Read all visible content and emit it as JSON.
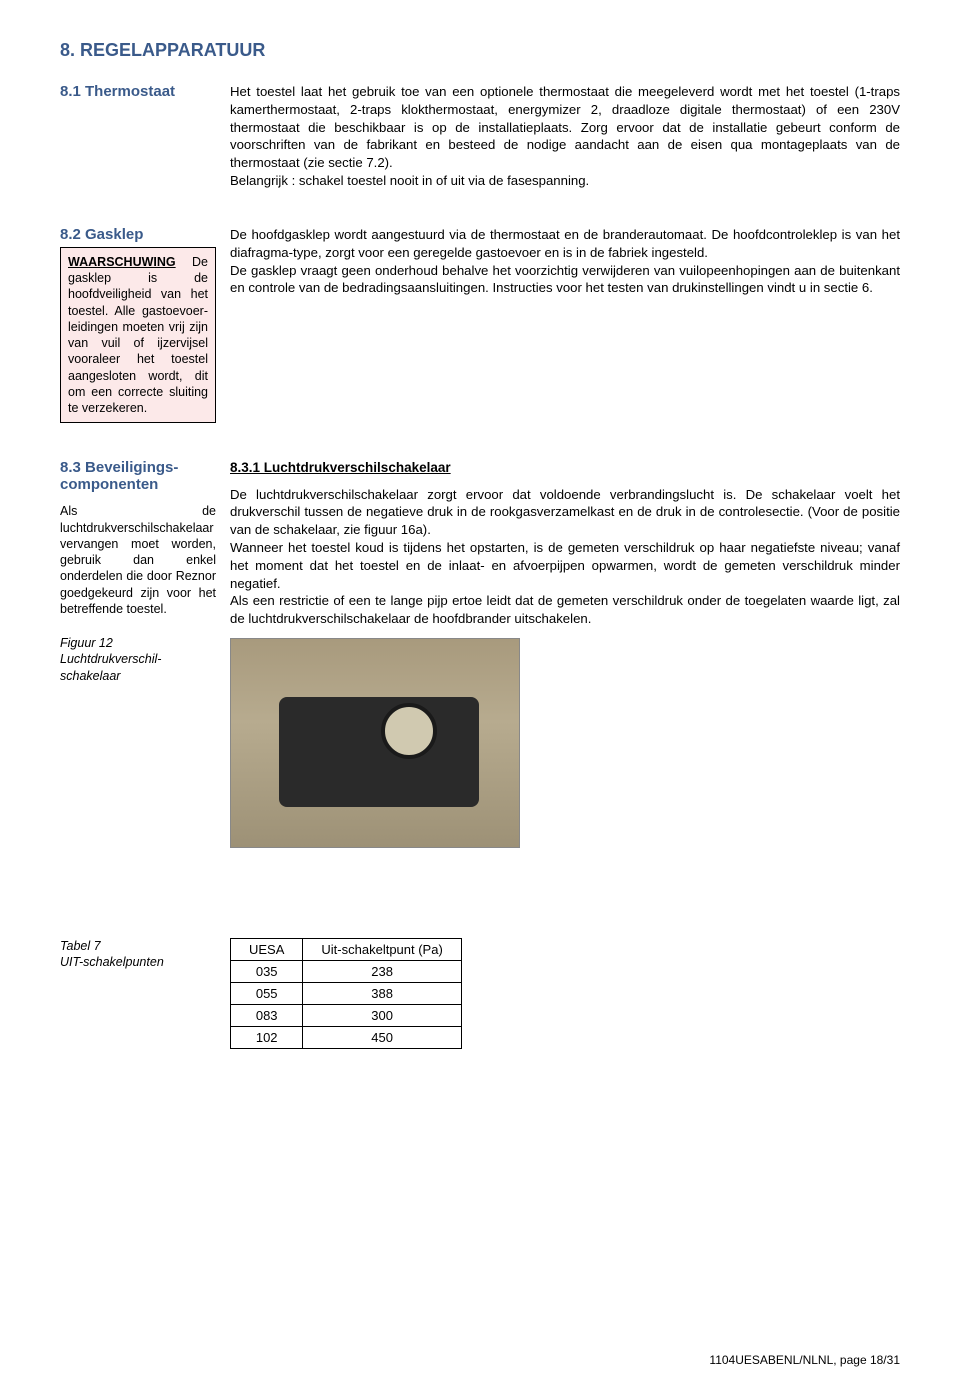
{
  "page_title": "8. REGELAPPARATUUR",
  "s1": {
    "heading": "8.1 Thermostaat",
    "body": "Het toestel laat het gebruik toe van een optionele thermostaat die meegeleverd wordt met het toestel (1-traps kamerthermostaat, 2-traps klokthermostaat, energymizer 2, draadloze digitale thermostaat) of een 230V thermostaat die beschikbaar is op de installatieplaats. Zorg ervoor dat de installatie gebeurt conform de voorschriften van de fabrikant en besteed de nodige aandacht aan de eisen qua montageplaats van de thermostaat (zie sectie 7.2).\nBelangrijk : schakel toestel nooit in of uit via de fasespanning."
  },
  "s2": {
    "heading": "8.2 Gasklep",
    "warning_title": "WAARSCHUWING",
    "warning_body": "De gasklep is de hoofdveiligheid van het toestel. Alle gastoevoer-leidingen moeten vrij zijn van vuil of ijzervijsel vooraleer het toestel aangesloten wordt, dit om een correcte sluiting te verzekeren.",
    "body": "De hoofdgasklep wordt aangestuurd via de thermostaat en de branderautomaat. De hoofdcontroleklep is van het diafragma-type, zorgt voor een geregelde gastoevoer en is in de fabriek ingesteld.\nDe gasklep vraagt geen onderhoud behalve het voorzichtig verwijderen van vuilopeenhopingen aan de buitenkant en controle van de bedradingsaansluitingen. Instructies voor het testen van drukinstellingen vindt u in sectie 6."
  },
  "s3": {
    "heading": "8.3 Beveiligings-componenten",
    "side_note": "Als de luchtdrukverschilschakelaar vervangen moet worden, gebruik dan enkel onderdelen die door Reznor goedgekeurd zijn voor het betreffende toestel.",
    "fig_label": "Figuur 12\nLuchtdrukverschil-schakelaar",
    "sub_heading": "8.3.1 Luchtdrukverschilschakelaar",
    "body": "De luchtdrukverschilschakelaar zorgt ervoor dat voldoende verbrandingslucht is. De schakelaar voelt het drukverschil tussen de negatieve druk in de rookgasverzamelkast en de druk in de controlesectie. (Voor de positie van de schakelaar, zie figuur 16a).\nWanneer het toestel koud is tijdens het opstarten, is de gemeten verschildruk op haar negatiefste niveau; vanaf het moment dat het toestel en de inlaat- en afvoerpijpen opwarmen, wordt de gemeten verschildruk minder negatief.\nAls een restrictie of een te lange pijp ertoe leidt dat de gemeten verschildruk onder de toegelaten waarde ligt, zal de luchtdrukverschilschakelaar de hoofdbrander uitschakelen."
  },
  "table": {
    "label": "Tabel 7\nUIT-schakelpunten",
    "columns": [
      "UESA",
      "Uit-schakeltpunt (Pa)"
    ],
    "rows": [
      [
        "035",
        "238"
      ],
      [
        "055",
        "388"
      ],
      [
        "083",
        "300"
      ],
      [
        "102",
        "450"
      ]
    ]
  },
  "footer": "1104UESABENL/NLNL, page 18/31",
  "colors": {
    "heading": "#3a5a8a",
    "warning_bg": "#fce9e9"
  }
}
